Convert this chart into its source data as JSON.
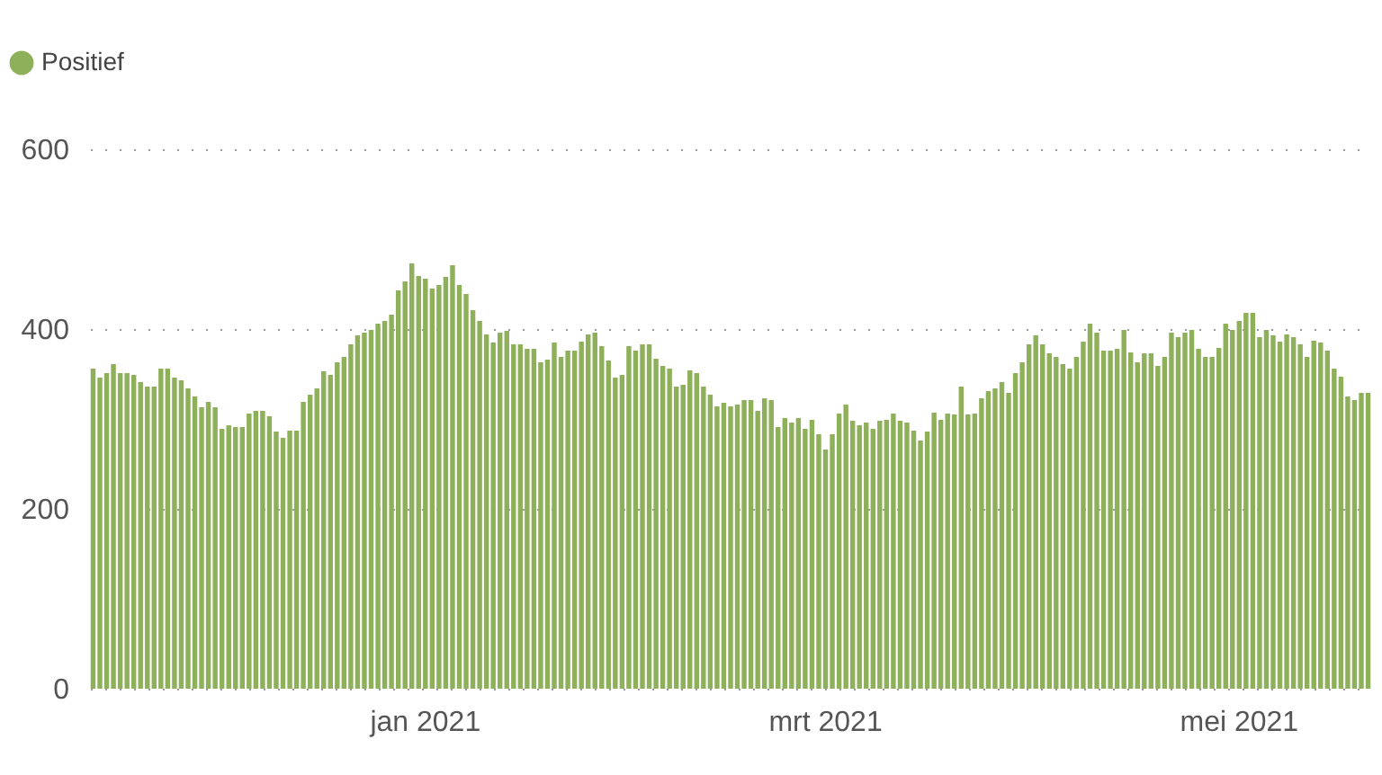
{
  "chart_data": {
    "type": "bar",
    "categories": [
      null,
      null,
      null,
      null,
      null,
      null,
      null,
      null,
      null,
      null,
      null,
      null,
      null,
      null,
      null,
      null,
      null,
      null,
      null,
      null,
      null,
      null,
      null,
      null,
      null,
      null,
      null,
      null,
      null,
      null,
      null,
      null,
      null,
      null,
      null,
      null,
      null,
      null,
      null,
      null,
      null,
      null,
      null,
      null,
      null,
      null,
      null,
      null,
      null,
      "jan 2021",
      null,
      null,
      null,
      null,
      null,
      null,
      null,
      null,
      null,
      null,
      null,
      null,
      null,
      null,
      null,
      null,
      null,
      null,
      null,
      null,
      null,
      null,
      null,
      null,
      null,
      null,
      null,
      null,
      null,
      null,
      null,
      null,
      null,
      null,
      null,
      null,
      null,
      null,
      null,
      null,
      null,
      null,
      null,
      null,
      null,
      null,
      null,
      null,
      null,
      null,
      null,
      null,
      null,
      null,
      null,
      null,
      null,
      null,
      "mrt 2021",
      null,
      null,
      null,
      null,
      null,
      null,
      null,
      null,
      null,
      null,
      null,
      null,
      null,
      null,
      null,
      null,
      null,
      null,
      null,
      null,
      null,
      null,
      null,
      null,
      null,
      null,
      null,
      null,
      null,
      null,
      null,
      null,
      null,
      null,
      null,
      null,
      null,
      null,
      null,
      null,
      null,
      null,
      null,
      null,
      null,
      null,
      null,
      null,
      null,
      null,
      null,
      null,
      null,
      null,
      null,
      null,
      null,
      null,
      null,
      null,
      "mei 2021",
      null,
      null,
      null,
      null,
      null,
      null,
      null,
      null,
      null,
      null,
      null,
      null,
      null,
      null,
      null,
      null,
      null,
      null,
      null
    ],
    "series": [
      {
        "name": "Positief",
        "color": "#8fb05a",
        "values": [
          356,
          346,
          351,
          361,
          351,
          351,
          349,
          341,
          336,
          336,
          356,
          356,
          346,
          343,
          334,
          325,
          313,
          319,
          313,
          289,
          293,
          291,
          291,
          306,
          309,
          309,
          303,
          286,
          279,
          287,
          287,
          319,
          327,
          334,
          353,
          349,
          363,
          369,
          383,
          393,
          396,
          399,
          406,
          409,
          416,
          443,
          453,
          473,
          459,
          456,
          445,
          449,
          458,
          471,
          449,
          439,
          421,
          409,
          394,
          385,
          396,
          398,
          383,
          383,
          378,
          378,
          363,
          366,
          385,
          369,
          376,
          376,
          386,
          394,
          396,
          381,
          365,
          346,
          349,
          381,
          376,
          383,
          383,
          367,
          359,
          356,
          336,
          338,
          354,
          351,
          336,
          327,
          314,
          318,
          314,
          316,
          321,
          321,
          309,
          323,
          321,
          291,
          301,
          296,
          301,
          289,
          299,
          283,
          266,
          283,
          306,
          316,
          298,
          293,
          296,
          289,
          298,
          299,
          306,
          298,
          296,
          287,
          276,
          286,
          307,
          299,
          306,
          305,
          336,
          305,
          306,
          323,
          331,
          334,
          341,
          329,
          351,
          363,
          383,
          393,
          383,
          373,
          369,
          361,
          356,
          369,
          386,
          406,
          396,
          376,
          376,
          378,
          399,
          374,
          363,
          373,
          373,
          359,
          369,
          396,
          391,
          396,
          399,
          378,
          369,
          369,
          379,
          406,
          399,
          409,
          418,
          418,
          391,
          399,
          393,
          386,
          394,
          391,
          383,
          369,
          387,
          385,
          376,
          356,
          347,
          325,
          321,
          329,
          329
        ]
      }
    ],
    "ylim": [
      0,
      600
    ],
    "yticks": [
      0,
      200,
      400,
      600
    ],
    "grid": "y",
    "legend": "top left"
  }
}
